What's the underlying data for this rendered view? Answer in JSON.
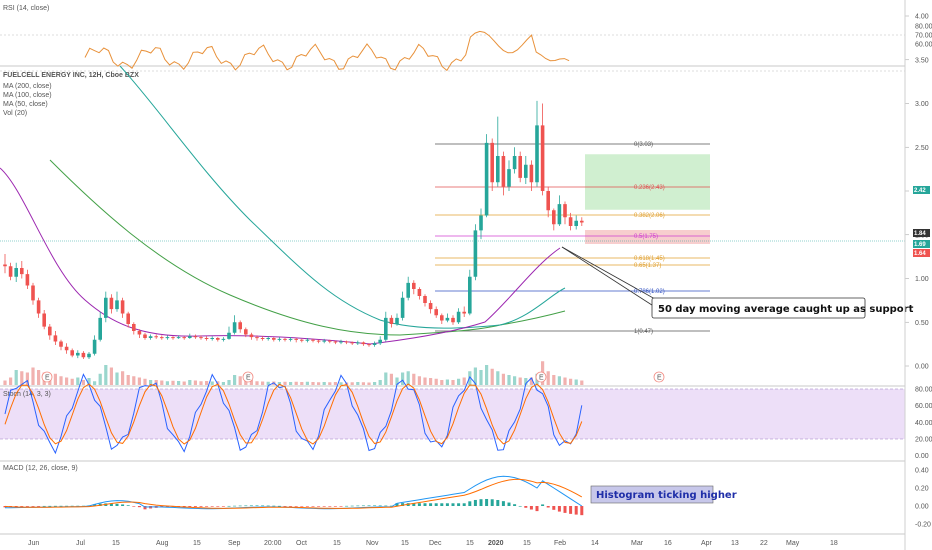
{
  "chart_data": {
    "type": "candlestick",
    "title": "FUELCELL ENERGY INC, 12H, Cboe BZX",
    "indicators": [
      "MA (200, close)",
      "MA (100, close)",
      "MA (50, close)",
      "Vol (20)"
    ],
    "x_tick_labels": [
      "Jun",
      "Jul",
      "15",
      "Aug",
      "15",
      "Sep",
      "20:00",
      "Oct",
      "15",
      "Nov",
      "15",
      "Dec",
      "15",
      "2020",
      "15",
      "Feb",
      "14",
      "Mar",
      "16",
      "Apr",
      "13",
      "22",
      "May",
      "18"
    ],
    "price_ticks": [
      "4.00",
      "3.50",
      "3.00",
      "2.50",
      "2.00",
      "1.50",
      "1.00",
      "0.50",
      "0.00"
    ],
    "price_badges": [
      {
        "label": "2.42",
        "color": "#26a69a"
      },
      {
        "label": "1.84",
        "color": "#333333"
      },
      {
        "label": "1.69",
        "color": "#26a69a"
      },
      {
        "label": "1.64",
        "color": "#ef5350"
      }
    ],
    "fib_levels": [
      {
        "label": "0(3.03)",
        "color": "#555555"
      },
      {
        "label": "0.236(2.43)",
        "color": "#e05050"
      },
      {
        "label": "0.382(2.06)",
        "color": "#e0a030"
      },
      {
        "label": "0.5(1.75)",
        "color": "#d040d0"
      },
      {
        "label": "0.618(1.45)",
        "color": "#e0a030"
      },
      {
        "label": "0.65(1.37)",
        "color": "#e0a030"
      },
      {
        "label": "0.786(1.02)",
        "color": "#3050c0"
      },
      {
        "label": "1(0.47)",
        "color": "#555555"
      }
    ],
    "rsi": {
      "label": "RSI (14, close)",
      "ticks": [
        "80.00",
        "70.00",
        "60.00"
      ]
    },
    "stoch": {
      "label": "Stoch (14, 3, 3)",
      "ticks": [
        "80.00",
        "60.00",
        "40.00",
        "20.00",
        "0.00"
      ]
    },
    "macd": {
      "label": "MACD (12, 26, close, 9)",
      "ticks": [
        "0.40",
        "0.20",
        "0.00",
        "-0.20"
      ]
    },
    "earnings_marker": "E",
    "annotations": {
      "support": "50 day moving average caught up as support",
      "histogram": "Histogram ticking higher"
    },
    "candles": [
      [
        0.18,
        1.16,
        1.14,
        1.28,
        1.06
      ],
      [
        0.3,
        1.14,
        1.02,
        1.18,
        0.98
      ],
      [
        0.6,
        1.02,
        1.12,
        1.18,
        0.96
      ],
      [
        0.55,
        1.12,
        1.05,
        1.2,
        1.0
      ],
      [
        0.5,
        1.05,
        0.92,
        1.1,
        0.88
      ],
      [
        0.7,
        0.92,
        0.75,
        0.95,
        0.7
      ],
      [
        0.6,
        0.75,
        0.6,
        0.78,
        0.55
      ],
      [
        0.5,
        0.6,
        0.45,
        0.64,
        0.42
      ],
      [
        0.4,
        0.45,
        0.35,
        0.48,
        0.3
      ],
      [
        0.45,
        0.35,
        0.28,
        0.4,
        0.24
      ],
      [
        0.35,
        0.28,
        0.22,
        0.3,
        0.18
      ],
      [
        0.3,
        0.22,
        0.18,
        0.26,
        0.14
      ],
      [
        0.25,
        0.18,
        0.12,
        0.2,
        0.1
      ],
      [
        0.3,
        0.12,
        0.15,
        0.18,
        0.09
      ],
      [
        0.2,
        0.15,
        0.1,
        0.17,
        0.08
      ],
      [
        0.28,
        0.1,
        0.14,
        0.16,
        0.08
      ],
      [
        0.15,
        0.14,
        0.3,
        0.35,
        0.12
      ],
      [
        0.45,
        0.3,
        0.55,
        0.62,
        0.28
      ],
      [
        0.8,
        0.55,
        0.78,
        0.85,
        0.5
      ],
      [
        0.7,
        0.78,
        0.65,
        0.82,
        0.6
      ],
      [
        0.5,
        0.65,
        0.75,
        0.85,
        0.62
      ],
      [
        0.55,
        0.75,
        0.6,
        0.78,
        0.55
      ],
      [
        0.4,
        0.6,
        0.48,
        0.62,
        0.44
      ],
      [
        0.35,
        0.48,
        0.4,
        0.5,
        0.36
      ],
      [
        0.3,
        0.4,
        0.36,
        0.42,
        0.32
      ],
      [
        0.25,
        0.36,
        0.32,
        0.38,
        0.3
      ],
      [
        0.2,
        0.32,
        0.34,
        0.36,
        0.3
      ],
      [
        0.2,
        0.34,
        0.33,
        0.36,
        0.31
      ],
      [
        0.18,
        0.33,
        0.32,
        0.35,
        0.3
      ],
      [
        0.15,
        0.32,
        0.33,
        0.35,
        0.3
      ],
      [
        0.17,
        0.33,
        0.32,
        0.34,
        0.3
      ],
      [
        0.16,
        0.32,
        0.33,
        0.35,
        0.31
      ],
      [
        0.14,
        0.33,
        0.32,
        0.34,
        0.3
      ],
      [
        0.2,
        0.32,
        0.34,
        0.37,
        0.31
      ],
      [
        0.18,
        0.34,
        0.33,
        0.36,
        0.31
      ],
      [
        0.15,
        0.33,
        0.32,
        0.35,
        0.3
      ],
      [
        0.16,
        0.32,
        0.31,
        0.34,
        0.29
      ],
      [
        0.14,
        0.31,
        0.32,
        0.34,
        0.29
      ],
      [
        0.15,
        0.32,
        0.3,
        0.33,
        0.28
      ],
      [
        0.12,
        0.3,
        0.31,
        0.33,
        0.28
      ],
      [
        0.2,
        0.31,
        0.38,
        0.45,
        0.3
      ],
      [
        0.4,
        0.38,
        0.5,
        0.58,
        0.36
      ],
      [
        0.35,
        0.5,
        0.42,
        0.52,
        0.38
      ],
      [
        0.25,
        0.42,
        0.36,
        0.44,
        0.33
      ],
      [
        0.2,
        0.36,
        0.33,
        0.38,
        0.3
      ],
      [
        0.15,
        0.33,
        0.32,
        0.35,
        0.29
      ],
      [
        0.14,
        0.32,
        0.31,
        0.34,
        0.29
      ],
      [
        0.13,
        0.31,
        0.32,
        0.34,
        0.29
      ],
      [
        0.14,
        0.32,
        0.3,
        0.33,
        0.28
      ],
      [
        0.12,
        0.3,
        0.31,
        0.33,
        0.28
      ],
      [
        0.13,
        0.31,
        0.3,
        0.32,
        0.28
      ],
      [
        0.12,
        0.3,
        0.31,
        0.33,
        0.28
      ],
      [
        0.13,
        0.31,
        0.3,
        0.32,
        0.27
      ],
      [
        0.12,
        0.3,
        0.29,
        0.31,
        0.27
      ],
      [
        0.13,
        0.29,
        0.3,
        0.32,
        0.27
      ],
      [
        0.12,
        0.3,
        0.29,
        0.31,
        0.27
      ],
      [
        0.11,
        0.29,
        0.28,
        0.3,
        0.26
      ],
      [
        0.12,
        0.28,
        0.29,
        0.31,
        0.26
      ],
      [
        0.11,
        0.29,
        0.28,
        0.3,
        0.26
      ],
      [
        0.12,
        0.28,
        0.27,
        0.29,
        0.25
      ],
      [
        0.11,
        0.27,
        0.28,
        0.3,
        0.25
      ],
      [
        0.1,
        0.28,
        0.27,
        0.29,
        0.25
      ],
      [
        0.11,
        0.27,
        0.26,
        0.28,
        0.24
      ],
      [
        0.12,
        0.26,
        0.27,
        0.29,
        0.24
      ],
      [
        0.11,
        0.27,
        0.25,
        0.28,
        0.23
      ],
      [
        0.1,
        0.25,
        0.24,
        0.26,
        0.22
      ],
      [
        0.12,
        0.24,
        0.26,
        0.28,
        0.22
      ],
      [
        0.2,
        0.26,
        0.3,
        0.34,
        0.24
      ],
      [
        0.5,
        0.3,
        0.55,
        0.62,
        0.28
      ],
      [
        0.45,
        0.55,
        0.48,
        0.58,
        0.44
      ],
      [
        0.3,
        0.48,
        0.55,
        0.6,
        0.46
      ],
      [
        0.5,
        0.55,
        0.78,
        0.85,
        0.52
      ],
      [
        0.55,
        0.78,
        0.95,
        1.02,
        0.75
      ],
      [
        0.45,
        0.95,
        0.88,
        0.98,
        0.82
      ],
      [
        0.35,
        0.88,
        0.8,
        0.9,
        0.76
      ],
      [
        0.3,
        0.8,
        0.72,
        0.82,
        0.68
      ],
      [
        0.28,
        0.72,
        0.65,
        0.75,
        0.6
      ],
      [
        0.25,
        0.65,
        0.58,
        0.68,
        0.55
      ],
      [
        0.2,
        0.58,
        0.52,
        0.6,
        0.48
      ],
      [
        0.22,
        0.52,
        0.55,
        0.6,
        0.5
      ],
      [
        0.2,
        0.55,
        0.5,
        0.58,
        0.47
      ],
      [
        0.25,
        0.5,
        0.62,
        0.66,
        0.48
      ],
      [
        0.3,
        0.62,
        0.6,
        0.68,
        0.56
      ],
      [
        0.55,
        0.6,
        1.02,
        1.1,
        0.58
      ],
      [
        0.7,
        1.02,
        1.55,
        1.62,
        0.98
      ],
      [
        0.6,
        1.55,
        1.72,
        1.8,
        1.45
      ],
      [
        0.8,
        1.72,
        2.55,
        2.65,
        1.7
      ],
      [
        0.65,
        2.55,
        2.1,
        2.6,
        2.0
      ],
      [
        0.55,
        2.1,
        2.4,
        2.85,
        2.05
      ],
      [
        0.45,
        2.4,
        2.05,
        2.45,
        1.95
      ],
      [
        0.4,
        2.05,
        2.25,
        2.35,
        2.0
      ],
      [
        0.35,
        2.25,
        2.4,
        2.5,
        2.2
      ],
      [
        0.3,
        2.4,
        2.15,
        2.45,
        2.1
      ],
      [
        0.28,
        2.15,
        2.3,
        2.4,
        2.08
      ],
      [
        0.3,
        2.3,
        2.1,
        2.35,
        2.0
      ],
      [
        0.45,
        2.1,
        2.75,
        3.03,
        2.05
      ],
      [
        0.95,
        2.75,
        2.0,
        3.0,
        1.95
      ],
      [
        0.55,
        2.0,
        1.78,
        2.05,
        1.7
      ],
      [
        0.4,
        1.78,
        1.62,
        1.8,
        1.55
      ],
      [
        0.35,
        1.62,
        1.85,
        1.95,
        1.6
      ],
      [
        0.3,
        1.85,
        1.7,
        1.88,
        1.62
      ],
      [
        0.25,
        1.7,
        1.6,
        1.75,
        1.55
      ],
      [
        0.22,
        1.6,
        1.66,
        1.72,
        1.56
      ],
      [
        0.18,
        1.66,
        1.64,
        1.7,
        1.6
      ]
    ],
    "projection_box": {
      "entry": 1.66,
      "target": 2.42,
      "stop": 1.55
    }
  }
}
